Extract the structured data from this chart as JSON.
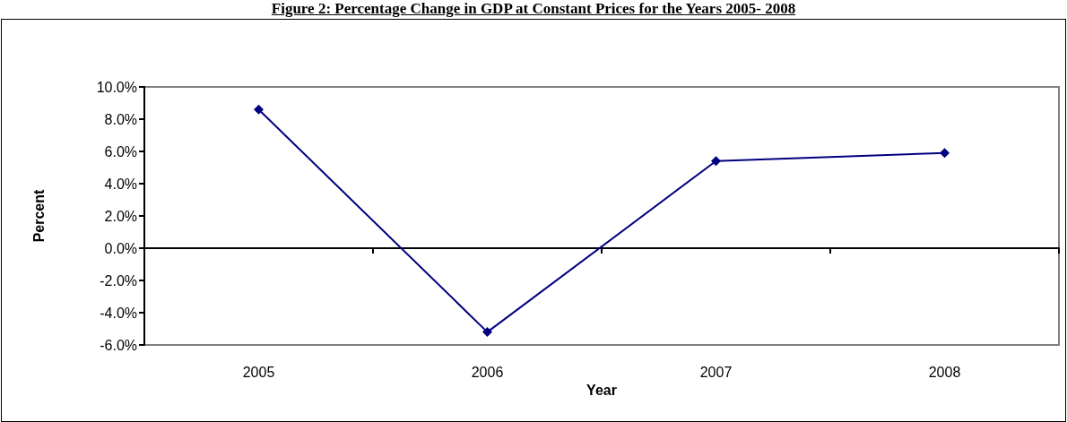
{
  "chart_data": {
    "type": "line",
    "title": "Figure 2: Percentage Change in GDP at Constant Prices for the Years 2005- 2008",
    "xlabel": "Year",
    "ylabel": "Percent",
    "categories": [
      "2005",
      "2006",
      "2007",
      "2008"
    ],
    "series": [
      {
        "color": "#000080",
        "values": [
          8.6,
          -5.2,
          5.4,
          5.9
        ]
      }
    ],
    "ylim": [
      -6,
      10
    ],
    "yticks": [
      {
        "value": -6,
        "label": "-6.0%"
      },
      {
        "value": -4,
        "label": "-4.0%"
      },
      {
        "value": -2,
        "label": "-2.0%"
      },
      {
        "value": 0,
        "label": "0.0%"
      },
      {
        "value": 2,
        "label": "2.0%"
      },
      {
        "value": 4,
        "label": "4.0%"
      },
      {
        "value": 6,
        "label": "6.0%"
      },
      {
        "value": 8,
        "label": "8.0%"
      },
      {
        "value": 10,
        "label": "10.0%"
      }
    ],
    "marker": "diamond",
    "line_style": "solid"
  }
}
